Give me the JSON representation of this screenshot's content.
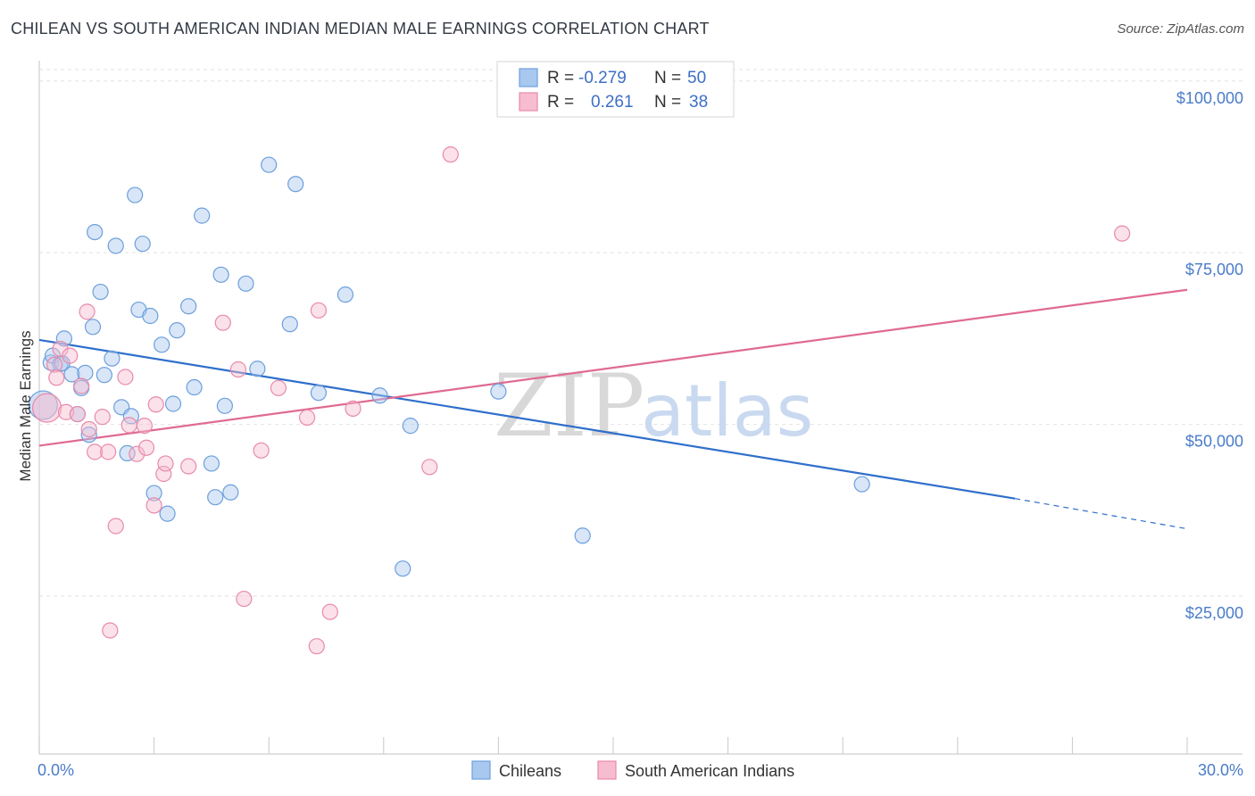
{
  "title": "CHILEAN VS SOUTH AMERICAN INDIAN MEDIAN MALE EARNINGS CORRELATION CHART",
  "source": "Source: ZipAtlas.com",
  "watermark": {
    "zip": "ZIP",
    "atlas": "atlas"
  },
  "colors": {
    "blue_fill": "#a8c8f0",
    "blue_stroke": "#6d9fdc",
    "blue_line": "#2f6fcb",
    "pink_fill": "#f7bcd0",
    "pink_stroke": "#e88aaa",
    "pink_line": "#e06a92",
    "grid": "#e2e2e2",
    "tick_text": "#4a7cc9"
  },
  "legend": {
    "rows": [
      {
        "r_label": "R =",
        "r_value": "-0.279",
        "n_label": "N =",
        "n_value": "50"
      },
      {
        "r_label": "R =",
        "r_value": "0.261",
        "n_label": "N =",
        "n_value": "38"
      }
    ]
  },
  "bottom_legend": [
    "Chileans",
    "South American Indians"
  ],
  "chart_data": {
    "type": "scatter",
    "title": "CHILEAN VS SOUTH AMERICAN INDIAN MEDIAN MALE EARNINGS CORRELATION CHART",
    "xlabel": "",
    "ylabel": "Median Male Earnings",
    "xlim": [
      0,
      30
    ],
    "ylim": [
      2000,
      104000
    ],
    "x_tick_labels": [
      "0.0%",
      "30.0%"
    ],
    "y_ticks": [
      25000,
      50000,
      75000,
      100000
    ],
    "y_tick_labels": [
      "$25,000",
      "$50,000",
      "$75,000",
      "$100,000"
    ],
    "grid": true,
    "legend_position": "top-center",
    "series": [
      {
        "name": "Chileans",
        "color": "#6d9fdc",
        "points": [
          [
            0.1,
            52800
          ],
          [
            0.3,
            59000
          ],
          [
            0.35,
            60000
          ],
          [
            0.55,
            58800
          ],
          [
            0.65,
            62500
          ],
          [
            0.85,
            57300
          ],
          [
            1.0,
            51500
          ],
          [
            1.1,
            55300
          ],
          [
            1.2,
            57500
          ],
          [
            1.3,
            48500
          ],
          [
            1.4,
            64200
          ],
          [
            1.45,
            78000
          ],
          [
            1.6,
            69300
          ],
          [
            1.7,
            57200
          ],
          [
            1.9,
            59600
          ],
          [
            2.0,
            76000
          ],
          [
            2.15,
            52500
          ],
          [
            2.3,
            45800
          ],
          [
            2.4,
            51200
          ],
          [
            2.5,
            83400
          ],
          [
            2.6,
            66700
          ],
          [
            2.7,
            76300
          ],
          [
            2.9,
            65800
          ],
          [
            3.0,
            40000
          ],
          [
            3.2,
            61600
          ],
          [
            3.35,
            37000
          ],
          [
            3.5,
            53000
          ],
          [
            3.6,
            63700
          ],
          [
            3.9,
            67200
          ],
          [
            4.05,
            55400
          ],
          [
            4.25,
            80400
          ],
          [
            4.5,
            44300
          ],
          [
            4.6,
            39400
          ],
          [
            4.75,
            71800
          ],
          [
            4.85,
            52700
          ],
          [
            5.0,
            40100
          ],
          [
            5.4,
            70500
          ],
          [
            5.7,
            58100
          ],
          [
            6.0,
            87800
          ],
          [
            6.55,
            64600
          ],
          [
            6.7,
            85000
          ],
          [
            7.3,
            54600
          ],
          [
            8.0,
            68900
          ],
          [
            8.9,
            54200
          ],
          [
            9.5,
            29000
          ],
          [
            9.7,
            49800
          ],
          [
            12.0,
            54800
          ],
          [
            14.2,
            33800
          ],
          [
            21.5,
            41300
          ],
          [
            0.6,
            58900
          ]
        ]
      },
      {
        "name": "South American Indians",
        "color": "#e88aaa",
        "points": [
          [
            0.2,
            52400
          ],
          [
            0.4,
            58700
          ],
          [
            0.45,
            56800
          ],
          [
            0.55,
            61000
          ],
          [
            0.7,
            51800
          ],
          [
            0.8,
            60000
          ],
          [
            1.0,
            51500
          ],
          [
            1.1,
            55600
          ],
          [
            1.25,
            66400
          ],
          [
            1.3,
            49300
          ],
          [
            1.45,
            46000
          ],
          [
            1.65,
            51100
          ],
          [
            1.8,
            46000
          ],
          [
            1.85,
            20000
          ],
          [
            2.0,
            35200
          ],
          [
            2.25,
            56900
          ],
          [
            2.35,
            49900
          ],
          [
            2.55,
            45700
          ],
          [
            2.75,
            49800
          ],
          [
            2.8,
            46600
          ],
          [
            3.0,
            38200
          ],
          [
            3.05,
            52900
          ],
          [
            3.25,
            42800
          ],
          [
            3.3,
            44300
          ],
          [
            3.9,
            43900
          ],
          [
            4.8,
            64800
          ],
          [
            5.2,
            58000
          ],
          [
            5.35,
            24600
          ],
          [
            5.8,
            46200
          ],
          [
            6.25,
            55300
          ],
          [
            7.0,
            51000
          ],
          [
            7.25,
            17700
          ],
          [
            7.3,
            66600
          ],
          [
            7.6,
            22700
          ],
          [
            8.2,
            52300
          ],
          [
            10.2,
            43800
          ],
          [
            10.75,
            89300
          ],
          [
            28.3,
            77800
          ]
        ]
      }
    ],
    "trend_lines": [
      {
        "series": "Chileans",
        "from": [
          0,
          62300
        ],
        "to": [
          25.5,
          39200
        ],
        "dashed_to": [
          30,
          34800
        ]
      },
      {
        "series": "South American Indians",
        "from": [
          0,
          46900
        ],
        "to": [
          30,
          69600
        ]
      }
    ]
  }
}
